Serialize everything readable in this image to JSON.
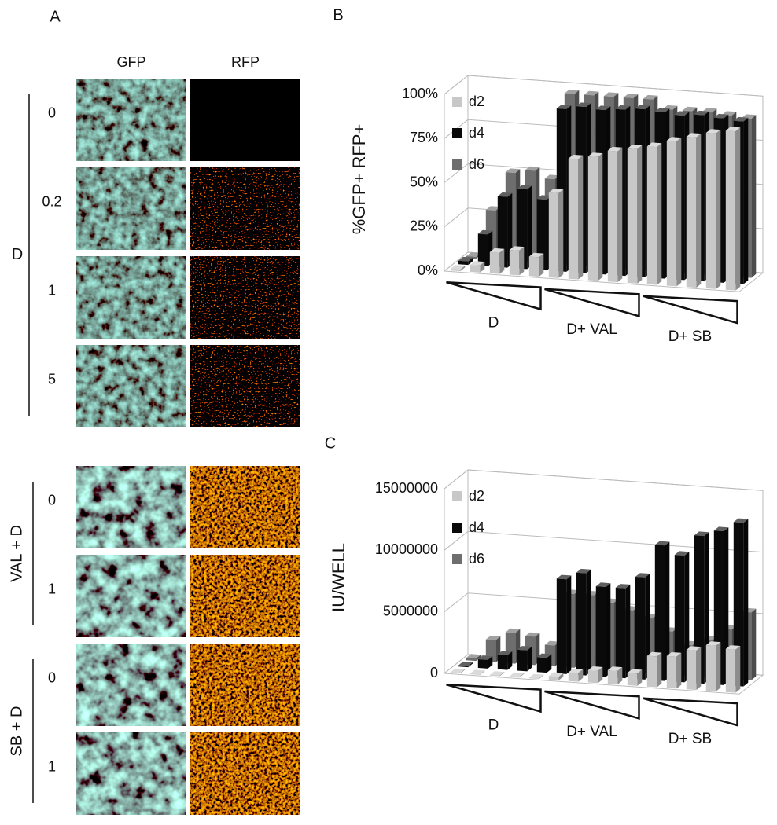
{
  "panel_a": {
    "label": "A",
    "columns": [
      "GFP",
      "RFP"
    ],
    "groups": [
      {
        "label": "D",
        "rows": [
          "0",
          "0.2",
          "1",
          "5"
        ]
      },
      {
        "label": "VAL + D",
        "rows": [
          "0",
          "1"
        ]
      },
      {
        "label": "SB + D",
        "rows": [
          "0",
          "1"
        ]
      }
    ]
  },
  "chart_data": [
    {
      "type": "bar3d",
      "label": "B",
      "y_label": "%GFP+ RFP+",
      "categories": [
        null,
        null,
        null,
        null,
        null,
        null,
        null,
        null,
        null,
        null,
        null,
        null,
        null,
        null,
        null
      ],
      "groups": [
        "D",
        "D+ VAL",
        "D+ SB"
      ],
      "ylim": [
        0,
        100
      ],
      "yticks": [
        {
          "value": 0,
          "label": "0%"
        },
        {
          "value": 25,
          "label": "25%"
        },
        {
          "value": 50,
          "label": "50%"
        },
        {
          "value": 75,
          "label": "75%"
        },
        {
          "value": 100,
          "label": "100%"
        }
      ],
      "grid": true,
      "series": [
        {
          "name": "d2",
          "color": "#c8c8c8",
          "values": [
            1,
            4,
            12,
            14,
            11,
            48,
            68,
            70,
            74,
            76,
            78,
            82,
            85,
            88,
            90
          ]
        },
        {
          "name": "d4",
          "color": "#0a0a0a",
          "values": [
            2,
            18,
            40,
            45,
            40,
            92,
            94,
            93,
            94,
            95,
            94,
            93,
            94,
            93,
            92
          ]
        },
        {
          "name": "d6",
          "color": "#6e6e6e",
          "values": [
            1,
            28,
            50,
            52,
            48,
            97,
            97,
            97,
            97,
            97,
            92,
            92,
            92,
            91,
            90
          ]
        }
      ]
    },
    {
      "type": "bar3d",
      "label": "C",
      "y_label": "IU/WELL",
      "categories": [
        null,
        null,
        null,
        null,
        null,
        null,
        null,
        null,
        null,
        null,
        null,
        null,
        null,
        null,
        null
      ],
      "groups": [
        "D",
        "D+ VAL",
        "D+ SB"
      ],
      "ylim": [
        0,
        15000000
      ],
      "yticks": [
        0,
        5000000,
        10000000,
        15000000
      ],
      "grid": true,
      "series": [
        {
          "name": "d2",
          "color": "#c8c8c8",
          "values": [
            50000,
            50000,
            50000,
            50000,
            50000,
            300000,
            700000,
            1000000,
            1100000,
            1000000,
            2500000,
            2600000,
            3200000,
            3700000,
            3500000
          ]
        },
        {
          "name": "d4",
          "color": "#0a0a0a",
          "values": [
            100000,
            700000,
            1200000,
            1700000,
            1200000,
            7700000,
            8300000,
            7300000,
            7300000,
            8300000,
            11000000,
            10300000,
            12000000,
            12500000,
            13300000
          ]
        },
        {
          "name": "d6",
          "color": "#6e6e6e",
          "values": [
            200000,
            1800000,
            2500000,
            2300000,
            1700000,
            6000000,
            6000000,
            5500000,
            5000000,
            4500000,
            3500000,
            2500000,
            3000000,
            4000000,
            5500000
          ]
        }
      ]
    }
  ]
}
